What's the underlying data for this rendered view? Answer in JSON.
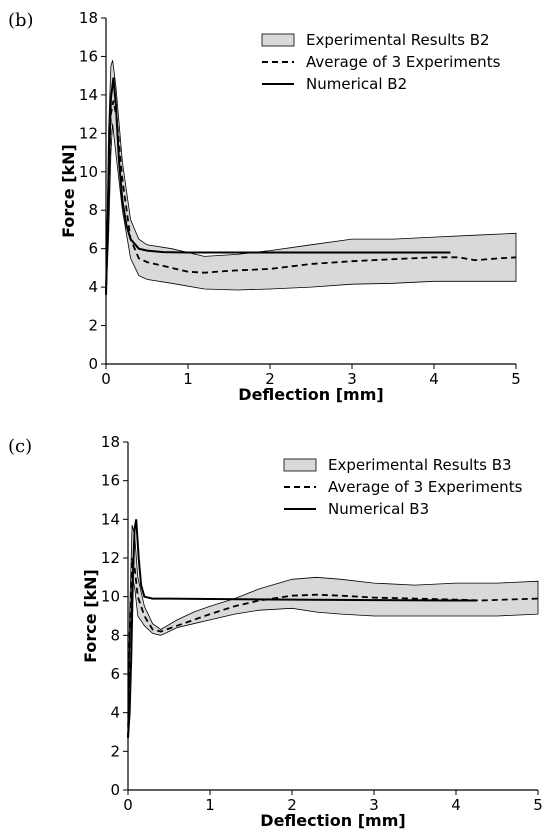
{
  "chart_data": [
    {
      "type": "line",
      "panel_label": "(b)",
      "xlabel": "Deflection [mm]",
      "ylabel": "Force [kN]",
      "xlim": [
        0,
        5
      ],
      "ylim": [
        0,
        18
      ],
      "xticks": [
        0,
        1,
        2,
        3,
        4,
        5
      ],
      "yticks": [
        0,
        2,
        4,
        6,
        8,
        10,
        12,
        14,
        16,
        18
      ],
      "grid": false,
      "legend_position": "top-right",
      "legend": [
        "Experimental Results B2",
        "Average of 3 Experiments",
        "Numerical B2"
      ],
      "series": [
        {
          "name": "Experimental Results B2",
          "kind": "band",
          "x": [
            0,
            0.03,
            0.06,
            0.08,
            0.12,
            0.2,
            0.3,
            0.4,
            0.5,
            0.8,
            1.2,
            1.6,
            2.0,
            2.5,
            3.0,
            3.5,
            4.0,
            4.5,
            5.0
          ],
          "upper": [
            3.7,
            12.0,
            15.5,
            15.8,
            14.5,
            10.5,
            7.5,
            6.5,
            6.2,
            6.0,
            5.6,
            5.7,
            5.9,
            6.2,
            6.5,
            6.5,
            6.6,
            6.7,
            6.8
          ],
          "lower": [
            3.5,
            6.5,
            11.0,
            12.5,
            11.0,
            8.0,
            5.5,
            4.6,
            4.4,
            4.2,
            3.9,
            3.85,
            3.9,
            4.0,
            4.15,
            4.2,
            4.3,
            4.3,
            4.3
          ]
        },
        {
          "name": "Average of 3 Experiments",
          "kind": "dashed",
          "x": [
            0,
            0.03,
            0.06,
            0.09,
            0.13,
            0.2,
            0.3,
            0.4,
            0.5,
            0.8,
            1.0,
            1.2,
            1.5,
            2.0,
            2.5,
            3.0,
            3.5,
            4.0,
            4.3,
            4.5,
            4.8,
            5.0
          ],
          "y": [
            3.6,
            9.0,
            13.0,
            13.7,
            12.8,
            9.6,
            6.5,
            5.5,
            5.3,
            5.0,
            4.8,
            4.75,
            4.85,
            4.95,
            5.2,
            5.35,
            5.45,
            5.55,
            5.55,
            5.4,
            5.5,
            5.55
          ]
        },
        {
          "name": "Numerical B2",
          "kind": "solid",
          "x": [
            0,
            0.02,
            0.04,
            0.06,
            0.09,
            0.12,
            0.16,
            0.2,
            0.25,
            0.3,
            0.4,
            0.5,
            0.7,
            1.0,
            2.0,
            3.0,
            4.0,
            4.2
          ],
          "y": [
            3.6,
            7.0,
            11.0,
            13.8,
            14.9,
            13.5,
            10.5,
            8.5,
            7.2,
            6.5,
            6.0,
            5.9,
            5.82,
            5.8,
            5.8,
            5.8,
            5.8,
            5.8
          ]
        }
      ]
    },
    {
      "type": "line",
      "panel_label": "(c)",
      "xlabel": "Deflection [mm]",
      "ylabel": "Force [kN]",
      "xlim": [
        0,
        5
      ],
      "ylim": [
        0,
        18
      ],
      "xticks": [
        0,
        1,
        2,
        3,
        4,
        5
      ],
      "yticks": [
        0,
        2,
        4,
        6,
        8,
        10,
        12,
        14,
        16,
        18
      ],
      "grid": false,
      "legend_position": "top-right",
      "legend": [
        "Experimental Results B3",
        "Average of 3 Experiments",
        "Numerical B3"
      ],
      "series": [
        {
          "name": "Experimental Results B3",
          "kind": "band",
          "x": [
            0,
            0.02,
            0.05,
            0.08,
            0.12,
            0.2,
            0.3,
            0.4,
            0.6,
            0.8,
            1.0,
            1.3,
            1.6,
            2.0,
            2.3,
            2.6,
            3.0,
            3.5,
            4.0,
            4.5,
            5.0
          ],
          "upper": [
            2.8,
            9.0,
            13.7,
            13.2,
            11.0,
            9.5,
            8.6,
            8.3,
            8.8,
            9.2,
            9.5,
            9.9,
            10.4,
            10.9,
            11.0,
            10.9,
            10.7,
            10.6,
            10.7,
            10.7,
            10.8
          ],
          "lower": [
            2.6,
            7.0,
            11.0,
            10.5,
            9.0,
            8.5,
            8.1,
            8.0,
            8.4,
            8.6,
            8.8,
            9.1,
            9.3,
            9.4,
            9.2,
            9.1,
            9.0,
            9.0,
            9.0,
            9.0,
            9.1
          ]
        },
        {
          "name": "Average of 3 Experiments",
          "kind": "dashed",
          "x": [
            0,
            0.02,
            0.05,
            0.08,
            0.12,
            0.2,
            0.3,
            0.4,
            0.6,
            0.8,
            1.0,
            1.3,
            1.6,
            2.0,
            2.3,
            2.6,
            3.0,
            3.5,
            4.0,
            4.3,
            4.6,
            5.0
          ],
          "y": [
            2.7,
            8.0,
            12.0,
            11.5,
            10.0,
            9.0,
            8.3,
            8.2,
            8.5,
            8.8,
            9.1,
            9.5,
            9.8,
            10.05,
            10.1,
            10.05,
            9.95,
            9.9,
            9.85,
            9.8,
            9.85,
            9.9
          ]
        },
        {
          "name": "Numerical B3",
          "kind": "solid",
          "x": [
            0,
            0.02,
            0.04,
            0.06,
            0.08,
            0.1,
            0.13,
            0.16,
            0.2,
            0.3,
            0.5,
            1.0,
            2.0,
            3.0,
            4.0,
            4.25
          ],
          "y": [
            2.7,
            4.0,
            7.0,
            11.0,
            13.5,
            14.0,
            12.0,
            10.6,
            10.0,
            9.9,
            9.9,
            9.88,
            9.85,
            9.82,
            9.8,
            9.8
          ]
        }
      ]
    }
  ]
}
